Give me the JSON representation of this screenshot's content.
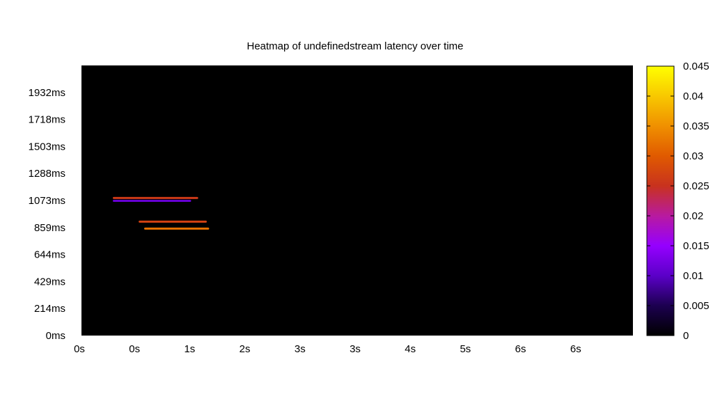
{
  "chart_data": {
    "type": "heatmap",
    "title": "Heatmap of undefinedstream latency over time",
    "xlabel": "",
    "ylabel": "",
    "x_ticks": [
      "0s",
      "0s",
      "1s",
      "2s",
      "3s",
      "3s",
      "4s",
      "5s",
      "6s",
      "6s"
    ],
    "y_ticks": [
      "0ms",
      "214ms",
      "429ms",
      "644ms",
      "859ms",
      "1073ms",
      "1288ms",
      "1503ms",
      "1718ms",
      "1932ms"
    ],
    "x_range_seconds": [
      0,
      7.04
    ],
    "y_range_ms": [
      0,
      2146
    ],
    "grid": false,
    "colorbar": {
      "ticks": [
        "0",
        "0.005",
        "0.01",
        "0.015",
        "0.02",
        "0.025",
        "0.03",
        "0.035",
        "0.04",
        "0.045"
      ],
      "range": [
        0,
        0.045
      ],
      "colors": [
        "#000000",
        "#1c0050",
        "#5b00c8",
        "#9500ff",
        "#b81aa0",
        "#c8321e",
        "#e05a00",
        "#f09000",
        "#f8c800",
        "#ffff00"
      ]
    },
    "cells": [
      {
        "x_start": 0.4,
        "x_end": 1.49,
        "y": 1093,
        "value": 0.026
      },
      {
        "x_start": 0.4,
        "x_end": 1.4,
        "y": 1070,
        "value": 0.011
      },
      {
        "x_start": 0.73,
        "x_end": 1.6,
        "y": 905,
        "value": 0.027
      },
      {
        "x_start": 0.8,
        "x_end": 1.63,
        "y": 850,
        "value": 0.032
      }
    ]
  }
}
